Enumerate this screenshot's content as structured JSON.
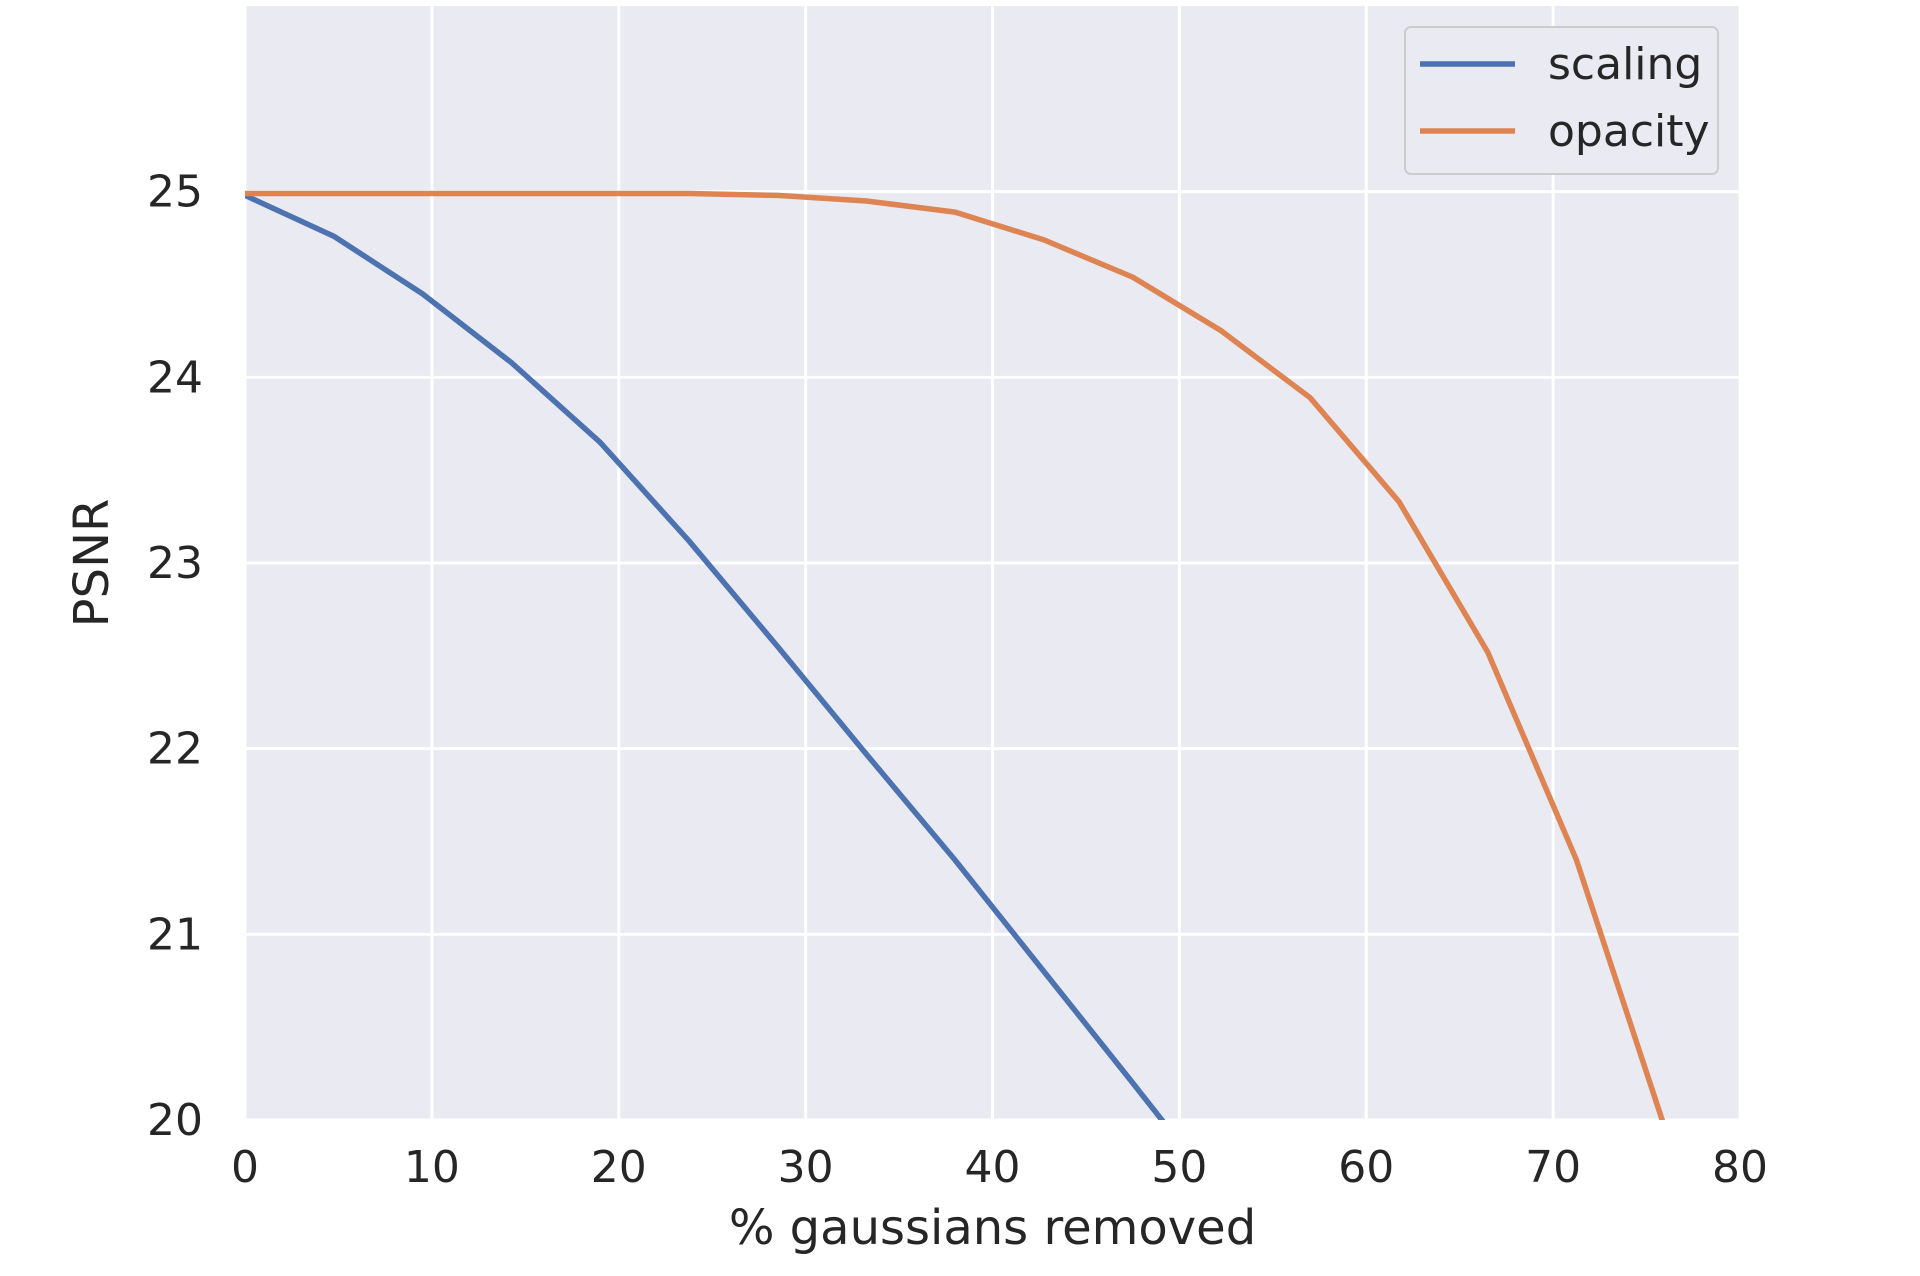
{
  "chart_data": {
    "type": "line",
    "title": "",
    "xlabel": "% gaussians removed",
    "ylabel": "PSNR",
    "xlim": [
      0,
      80
    ],
    "ylim": [
      20,
      26
    ],
    "xticks": [
      0,
      10,
      20,
      30,
      40,
      50,
      60,
      70,
      80
    ],
    "yticks": [
      20,
      21,
      22,
      23,
      24,
      25
    ],
    "grid": true,
    "legend_position": "top-right",
    "background_color": "#EAEAF2",
    "series": [
      {
        "name": "scaling",
        "color": "#4C72B0",
        "x": [
          0,
          4.75,
          9.5,
          14.25,
          19,
          23.75,
          28.5,
          33.25,
          38,
          42.75,
          47.5,
          49.3
        ],
        "y": [
          24.98,
          24.76,
          24.45,
          24.08,
          23.65,
          23.12,
          22.55,
          21.97,
          21.4,
          20.8,
          20.2,
          19.97
        ]
      },
      {
        "name": "opacity",
        "color": "#DD8452",
        "x": [
          0,
          4.75,
          9.5,
          14.25,
          19,
          23.75,
          28.5,
          33.25,
          38,
          42.75,
          47.5,
          52.25,
          57,
          61.75,
          66.5,
          71.25,
          75.9
        ],
        "y": [
          24.99,
          24.99,
          24.99,
          24.99,
          24.99,
          24.99,
          24.98,
          24.95,
          24.89,
          24.74,
          24.54,
          24.25,
          23.89,
          23.33,
          22.52,
          21.4,
          19.98
        ]
      }
    ]
  }
}
